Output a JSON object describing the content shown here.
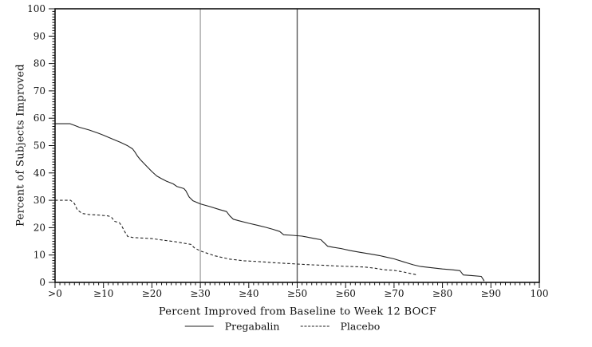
{
  "chart_data": {
    "type": "line",
    "title": "",
    "xlabel": "Percent Improved from Baseline to Week 12 BOCF",
    "ylabel": "Percent of Subjects Improved",
    "xlim": [
      0,
      100
    ],
    "ylim": [
      0,
      100
    ],
    "grid": false,
    "legend_position": "bottom-center",
    "x_tick_values": [
      0,
      10,
      20,
      30,
      40,
      50,
      60,
      70,
      80,
      90,
      100
    ],
    "x_tick_labels": [
      ">0",
      "≥10",
      "≥20",
      "≥30",
      "≥40",
      "≥50",
      "≥60",
      "≥70",
      "≥80",
      "≥90",
      "100"
    ],
    "y_tick_values": [
      0,
      10,
      20,
      30,
      40,
      50,
      60,
      70,
      80,
      90,
      100
    ],
    "y_tick_labels": [
      "0",
      "10",
      "20",
      "30",
      "40",
      "50",
      "60",
      "70",
      "80",
      "90",
      "100"
    ],
    "minor_tick_step": 1,
    "axis_color": "#111111",
    "reference_lines": [
      {
        "x": 30,
        "color": "#a9a9a9"
      },
      {
        "x": 50,
        "color": "#5a5a5a"
      }
    ],
    "series": [
      {
        "name": "Pregabalin",
        "style": "solid",
        "color": "#222222",
        "points": [
          [
            0,
            58
          ],
          [
            3.1,
            58
          ],
          [
            4,
            57.4
          ],
          [
            5,
            56.7
          ],
          [
            7,
            55.7
          ],
          [
            9,
            54.5
          ],
          [
            10,
            53.8
          ],
          [
            12,
            52.3
          ],
          [
            13.5,
            51.2
          ],
          [
            15,
            49.9
          ],
          [
            16,
            48.8
          ],
          [
            16.5,
            47.6
          ],
          [
            17,
            46.2
          ],
          [
            17.6,
            44.9
          ],
          [
            18.3,
            43.6
          ],
          [
            19,
            42.3
          ],
          [
            20,
            40.5
          ],
          [
            21,
            38.9
          ],
          [
            22,
            37.9
          ],
          [
            23,
            37
          ],
          [
            24.4,
            36
          ],
          [
            25.2,
            35
          ],
          [
            26.6,
            34.3
          ],
          [
            27,
            33.5
          ],
          [
            27.7,
            31.2
          ],
          [
            28.5,
            29.8
          ],
          [
            30,
            28.7
          ],
          [
            32,
            27.7
          ],
          [
            34,
            26.6
          ],
          [
            35.4,
            25.9
          ],
          [
            36.1,
            24.3
          ],
          [
            36.8,
            23.1
          ],
          [
            38,
            22.5
          ],
          [
            40,
            21.6
          ],
          [
            42,
            20.8
          ],
          [
            43.6,
            20.1
          ],
          [
            45,
            19.4
          ],
          [
            46.4,
            18.6
          ],
          [
            47.2,
            17.4
          ],
          [
            49,
            17.2
          ],
          [
            51,
            16.9
          ],
          [
            53.4,
            16.1
          ],
          [
            54.9,
            15.6
          ],
          [
            56.3,
            13.2
          ],
          [
            57.5,
            12.8
          ],
          [
            59,
            12.4
          ],
          [
            61,
            11.6
          ],
          [
            63,
            11
          ],
          [
            65,
            10.4
          ],
          [
            67,
            9.8
          ],
          [
            68,
            9.4
          ],
          [
            70,
            8.6
          ],
          [
            72,
            7.5
          ],
          [
            74,
            6.4
          ],
          [
            75.5,
            5.8
          ],
          [
            78,
            5.3
          ],
          [
            80,
            4.9
          ],
          [
            82,
            4.6
          ],
          [
            83.6,
            4.3
          ],
          [
            84.3,
            2.7
          ],
          [
            86,
            2.5
          ],
          [
            88,
            2.2
          ],
          [
            88.4,
            1.1
          ],
          [
            88.6,
            0.5
          ]
        ]
      },
      {
        "name": "Placebo",
        "style": "dashed",
        "color": "#222222",
        "points": [
          [
            0,
            30
          ],
          [
            3.2,
            30
          ],
          [
            4,
            28.8
          ],
          [
            4.6,
            26.5
          ],
          [
            5.6,
            25.2
          ],
          [
            7,
            24.8
          ],
          [
            9,
            24.6
          ],
          [
            11,
            24.3
          ],
          [
            11.7,
            23.7
          ],
          [
            12.3,
            22.3
          ],
          [
            13.3,
            21.8
          ],
          [
            13.8,
            20.5
          ],
          [
            14.5,
            18.2
          ],
          [
            15,
            16.8
          ],
          [
            16,
            16.4
          ],
          [
            18,
            16.2
          ],
          [
            20,
            16
          ],
          [
            22,
            15.5
          ],
          [
            25,
            14.8
          ],
          [
            27,
            14.2
          ],
          [
            28,
            13.9
          ],
          [
            28.8,
            12.6
          ],
          [
            30,
            11.5
          ],
          [
            33,
            9.7
          ],
          [
            36,
            8.5
          ],
          [
            39,
            7.9
          ],
          [
            42,
            7.6
          ],
          [
            45,
            7.2
          ],
          [
            48,
            6.9
          ],
          [
            50,
            6.7
          ],
          [
            53,
            6.4
          ],
          [
            56,
            6.2
          ],
          [
            58,
            6
          ],
          [
            61,
            5.8
          ],
          [
            64,
            5.6
          ],
          [
            66,
            5.2
          ],
          [
            68,
            4.6
          ],
          [
            70,
            4.4
          ],
          [
            72,
            3.8
          ],
          [
            73.5,
            3.2
          ],
          [
            74.4,
            2.9
          ],
          [
            74.7,
            2.1
          ]
        ]
      }
    ]
  }
}
